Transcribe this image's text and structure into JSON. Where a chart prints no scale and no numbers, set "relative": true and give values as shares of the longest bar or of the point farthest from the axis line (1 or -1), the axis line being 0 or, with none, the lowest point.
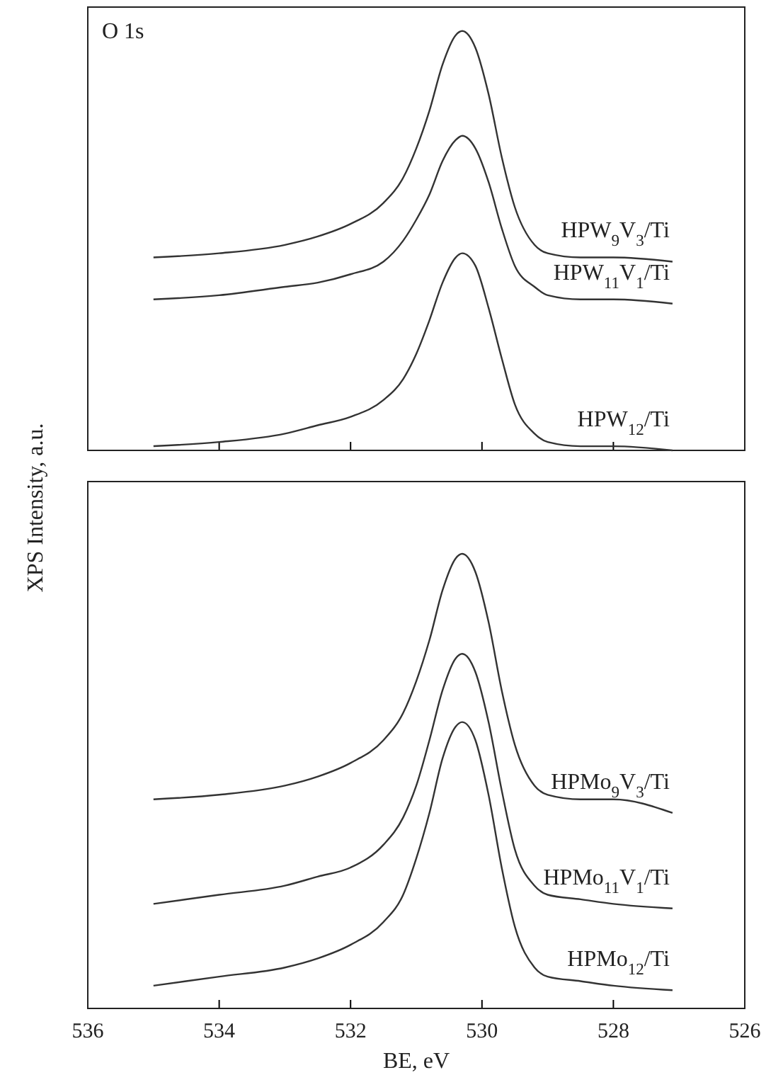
{
  "chart_data": [
    {
      "type": "line",
      "relative": true,
      "ylabel": "XPS Intensity, a.u.",
      "annotations": [
        "O 1s"
      ],
      "xlim": [
        536,
        526
      ],
      "xticks": [
        536,
        534,
        532,
        530,
        528,
        526
      ],
      "tick_labels": false,
      "legend": false,
      "x": [
        535,
        534,
        533,
        532.5,
        532,
        531.5,
        531.2,
        531,
        530.8,
        530.6,
        530.4,
        530.3,
        530.1,
        529.9,
        529.7,
        529.5,
        529.2,
        529,
        528.5,
        528,
        527.1
      ],
      "series": [
        {
          "name": "HPW$_{9}$V$_{3}$/Ti",
          "color": "#333333",
          "values": [
            0.46,
            0.47,
            0.49,
            0.51,
            0.54,
            0.59,
            0.65,
            0.72,
            0.81,
            0.92,
            0.99,
            1.0,
            0.96,
            0.85,
            0.7,
            0.58,
            0.49,
            0.47,
            0.46,
            0.46,
            0.45
          ]
        },
        {
          "name": "HPW$_{11}$V$_{1}$/Ti",
          "color": "#333333",
          "values": [
            0.36,
            0.37,
            0.39,
            0.4,
            0.42,
            0.45,
            0.5,
            0.55,
            0.61,
            0.69,
            0.74,
            0.75,
            0.72,
            0.64,
            0.53,
            0.44,
            0.39,
            0.37,
            0.36,
            0.36,
            0.35
          ]
        },
        {
          "name": "HPW$_{12}$/Ti",
          "color": "#333333",
          "values": [
            0.01,
            0.02,
            0.04,
            0.06,
            0.08,
            0.12,
            0.17,
            0.23,
            0.31,
            0.4,
            0.46,
            0.47,
            0.44,
            0.34,
            0.22,
            0.11,
            0.04,
            0.02,
            0.01,
            0.01,
            0.0
          ]
        }
      ]
    },
    {
      "type": "line",
      "relative": true,
      "xlabel": "BE, eV",
      "xlim": [
        536,
        526
      ],
      "xticks": [
        536,
        534,
        532,
        530,
        528,
        526
      ],
      "tick_labels": "x",
      "legend": false,
      "x": [
        535,
        534,
        533,
        532.5,
        532,
        531.5,
        531.2,
        531,
        530.8,
        530.6,
        530.4,
        530.3,
        530.1,
        529.9,
        529.7,
        529.5,
        529.2,
        529,
        528.5,
        528,
        527.1
      ],
      "series": [
        {
          "name": "HPMo$_{9}$V$_{3}$/Ti",
          "color": "#333333",
          "values": [
            0.46,
            0.47,
            0.49,
            0.51,
            0.54,
            0.59,
            0.65,
            0.72,
            0.81,
            0.92,
            0.99,
            1.0,
            0.96,
            0.85,
            0.7,
            0.58,
            0.49,
            0.47,
            0.46,
            0.46,
            0.43
          ]
        },
        {
          "name": "HPMo$_{11}$V$_{1}$/Ti",
          "color": "#333333",
          "values": [
            0.23,
            0.25,
            0.27,
            0.29,
            0.31,
            0.36,
            0.42,
            0.49,
            0.59,
            0.7,
            0.77,
            0.78,
            0.74,
            0.63,
            0.48,
            0.35,
            0.27,
            0.25,
            0.24,
            0.23,
            0.22
          ]
        },
        {
          "name": "HPMo$_{12}$/Ti",
          "color": "#333333",
          "values": [
            0.05,
            0.07,
            0.09,
            0.11,
            0.14,
            0.19,
            0.25,
            0.33,
            0.43,
            0.55,
            0.62,
            0.63,
            0.59,
            0.47,
            0.31,
            0.18,
            0.09,
            0.07,
            0.06,
            0.05,
            0.04
          ]
        }
      ]
    }
  ]
}
